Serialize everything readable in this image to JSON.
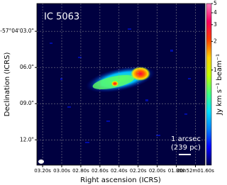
{
  "chart_data": {
    "type": "image",
    "annotation": "IC 5063",
    "xlabel": "Right ascension (ICRS)",
    "ylabel": "Declination (ICRS)",
    "xlim": [
      3.26,
      1.5
    ],
    "xticks": [
      {
        "value": 3.2,
        "label": "03.20s"
      },
      {
        "value": 3.0,
        "label": "03.00s"
      },
      {
        "value": 2.8,
        "label": "02.80s"
      },
      {
        "value": 2.6,
        "label": "02.60s"
      },
      {
        "value": 2.4,
        "label": "02.40s"
      },
      {
        "value": 2.2,
        "label": "02.20s"
      },
      {
        "value": 2.0,
        "label": "02.00s"
      },
      {
        "value": 1.8,
        "label": "01.80s"
      },
      {
        "value": 1.6,
        "label": "20h52m01.60s"
      }
    ],
    "ylim": [
      14.1,
      0.7
    ],
    "yticks": [
      {
        "value": 3,
        "label": "-57°04'03.0\""
      },
      {
        "value": 6,
        "label": "06.0\""
      },
      {
        "value": 9,
        "label": "09.0\""
      },
      {
        "value": 12,
        "label": "12.0\""
      }
    ],
    "grid": true,
    "colorbar": {
      "label": "Jy km s⁻¹ beam⁻¹",
      "scale": "log",
      "lim": [
        0.1,
        5
      ],
      "ticks": [
        1,
        2,
        3,
        4,
        5
      ],
      "colors": [
        "#00005a",
        "#0000ff",
        "#0080ff",
        "#00e0ff",
        "#40ff80",
        "#c0ff00",
        "#ffd000",
        "#ff4000",
        "#ff0060",
        "#ff80c0"
      ]
    },
    "scalebar": {
      "label": "1 arcsec",
      "sublabel": "(239 pc)"
    }
  }
}
